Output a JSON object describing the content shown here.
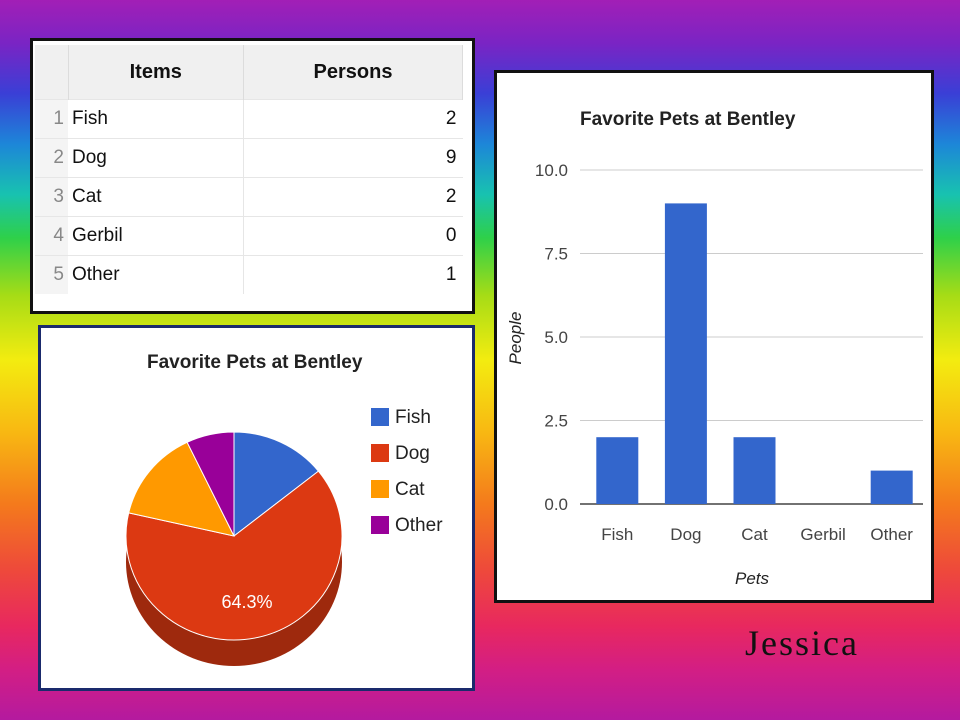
{
  "table": {
    "headers": [
      "Items",
      "Persons"
    ],
    "rows": [
      {
        "n": "1",
        "item": "Fish",
        "value": "2"
      },
      {
        "n": "2",
        "item": "Dog",
        "value": "9"
      },
      {
        "n": "3",
        "item": "Cat",
        "value": "2"
      },
      {
        "n": "4",
        "item": "Gerbil",
        "value": "0"
      },
      {
        "n": "5",
        "item": "Other",
        "value": "1"
      }
    ]
  },
  "chart_data": [
    {
      "type": "pie",
      "title": "Favorite Pets at Bentley",
      "categories": [
        "Fish",
        "Dog",
        "Cat",
        "Other"
      ],
      "values": [
        2,
        9,
        2,
        1
      ],
      "colors": [
        "#3366cc",
        "#dc3912",
        "#ff9900",
        "#990099"
      ],
      "data_labels": [
        "",
        "64.3%",
        "",
        ""
      ],
      "legend_position": "right"
    },
    {
      "type": "bar",
      "title": "Favorite Pets at Bentley",
      "categories": [
        "Fish",
        "Dog",
        "Cat",
        "Gerbil",
        "Other"
      ],
      "values": [
        2,
        9,
        2,
        0,
        1
      ],
      "xlabel": "Pets",
      "ylabel": "People",
      "ylim": [
        0,
        10
      ],
      "yticks": [
        "0.0",
        "2.5",
        "5.0",
        "7.5",
        "10.0"
      ],
      "color": "#3366cc",
      "grid": true
    }
  ],
  "signature": "Jessica"
}
